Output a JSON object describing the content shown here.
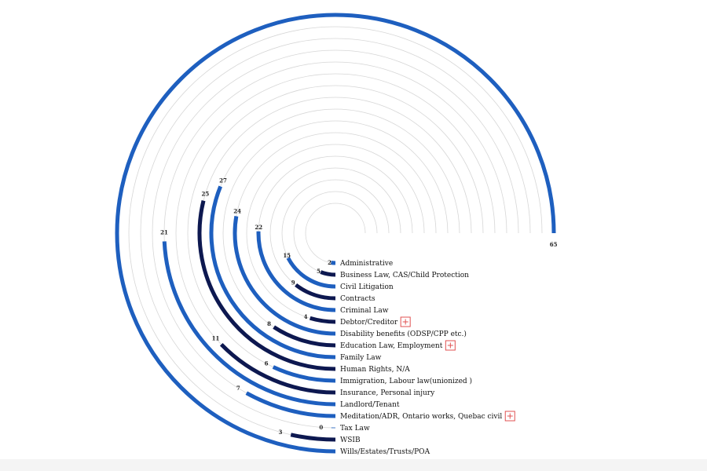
{
  "chart_data": {
    "type": "radial-bar",
    "max_value": 65,
    "categories": [
      "Administrative",
      "Business Law, CAS/Child Protection",
      "Civil Litigation",
      "Contracts",
      "Criminal Law",
      "Debtor/Creditor",
      "Disability benefits (ODSP/CPP etc.)",
      "Education Law, Employment",
      "Family Law",
      "Human Rights, N/A",
      "Immigration, Labour law(unionized )",
      "Insurance,  Personal injury",
      "Landlord/Tenant",
      "Meditation/ADR, Ontario works, Quebac civil",
      "Tax Law",
      "WSIB",
      "Wills/Estates/Trusts/POA"
    ],
    "values": [
      2,
      5,
      15,
      9,
      22,
      4,
      24,
      8,
      27,
      25,
      6,
      11,
      21,
      7,
      0,
      3,
      65
    ],
    "value_labels": [
      "2",
      "5",
      "15",
      "9",
      "22",
      "4",
      "24",
      "8",
      "27",
      "25",
      "6",
      "11",
      "21",
      "7",
      "0",
      "3",
      "65"
    ],
    "colors": [
      "#1e5fbf",
      "#0d1850",
      "#1e5fbf",
      "#0d1850",
      "#1e5fbf",
      "#0d1850",
      "#1e5fbf",
      "#0d1850",
      "#1e5fbf",
      "#0d1850",
      "#1e5fbf",
      "#0d1850",
      "#1e5fbf",
      "#1e5fbf",
      "#1e5fbf",
      "#0d1850",
      "#1e5fbf"
    ],
    "expandable": [
      false,
      false,
      false,
      false,
      false,
      true,
      false,
      true,
      false,
      false,
      false,
      false,
      false,
      true,
      false,
      false,
      false
    ],
    "grid": true
  }
}
